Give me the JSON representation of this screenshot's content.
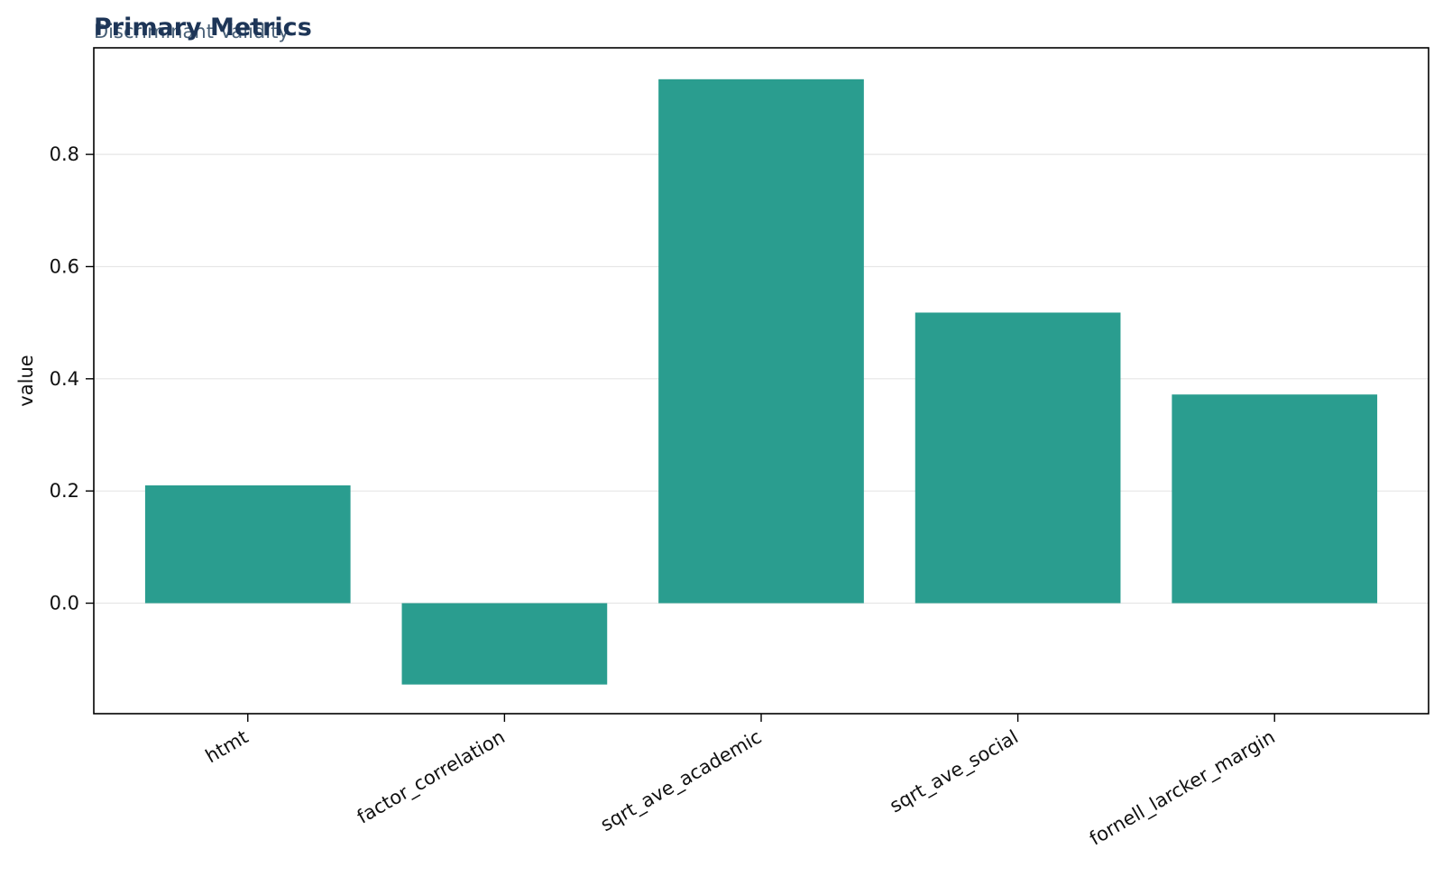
{
  "chart_data": {
    "type": "bar",
    "title": "Primary Metrics",
    "subtitle": "Discriminant Validity",
    "xlabel": "",
    "ylabel": "value",
    "categories": [
      "htmt",
      "factor_correlation",
      "sqrt_ave_academic",
      "sqrt_ave_social",
      "fornell_larcker_margin"
    ],
    "values": [
      0.21,
      -0.145,
      0.934,
      0.518,
      0.372
    ],
    "ylim": [
      -0.197,
      0.99
    ],
    "yticks": [
      0.0,
      0.2,
      0.4,
      0.6,
      0.8
    ],
    "ytick_labels": [
      "0.0",
      "0.2",
      "0.4",
      "0.6",
      "0.8"
    ],
    "grid": "y",
    "legend": "none",
    "colors": {
      "bar": "#2a9d8f",
      "title": "#1d3557",
      "subtitle": "#4a6178",
      "grid": "#e6e6e6",
      "axis": "#000000"
    }
  }
}
